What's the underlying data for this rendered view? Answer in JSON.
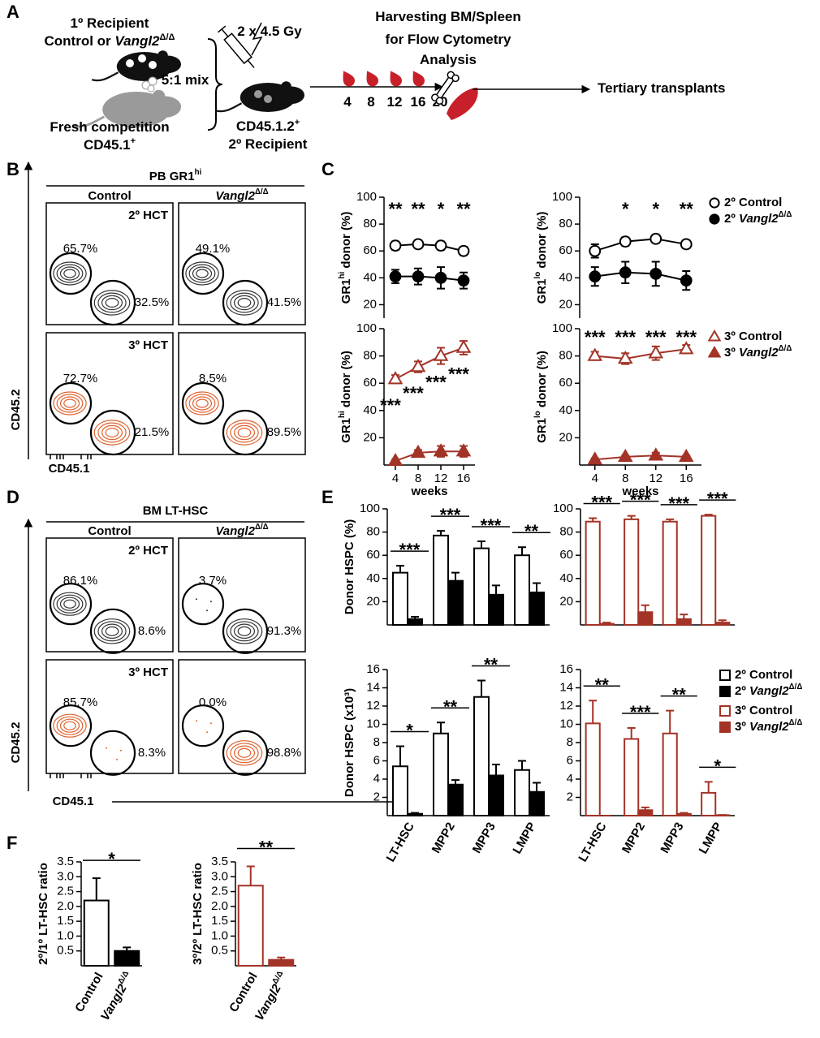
{
  "panel_labels": [
    "A",
    "B",
    "C",
    "D",
    "E",
    "F"
  ],
  "schematic": {
    "donor_title": "1º Recipient",
    "donor_genotype": "Control or Vangl2Δ/Δ",
    "mix": "5:1 mix",
    "competitor": [
      "Fresh competition",
      "CD45.1+"
    ],
    "irradiation": "2 x 4.5 Gy",
    "recipient": [
      "CD45.1.2+",
      "2º Recipient"
    ],
    "weeks": [
      4,
      8,
      12,
      16,
      20
    ],
    "harvest": [
      "Harvesting BM/Spleen",
      "for Flow Cytometry",
      "Analysis"
    ],
    "next": "Tertiary transplants"
  },
  "flow": [
    {
      "title": "PB GR1hi",
      "columns": [
        "Control",
        "Vangl2Δ/Δ"
      ],
      "rows": [
        "2º HCT",
        "3º HCT"
      ],
      "gates": [
        [
          [
            "65.7%",
            "32.5%"
          ],
          [
            "49.1%",
            "41.5%"
          ]
        ],
        [
          [
            "72.7%",
            "21.5%"
          ],
          [
            "8.5%",
            "89.5%"
          ]
        ]
      ],
      "x_label": "CD45.1",
      "y_label": "CD45.2"
    },
    {
      "title": "BM LT-HSC",
      "columns": [
        "Control",
        "Vangl2Δ/Δ"
      ],
      "rows": [
        "2º HCT",
        "3º HCT"
      ],
      "gates": [
        [
          [
            "86.1%",
            "8.6%"
          ],
          [
            "3.7%",
            "91.3%"
          ]
        ],
        [
          [
            "85.7%",
            "8.3%"
          ],
          [
            "0.0%",
            "98.8%"
          ]
        ]
      ],
      "x_label": "CD45.1",
      "y_label": "CD45.2"
    }
  ],
  "chart_data": [
    {
      "type": "line",
      "y_label": "GR1hi donor (%)",
      "x": [
        4,
        8,
        12,
        16
      ],
      "xlim": [
        2,
        18
      ],
      "ylim": [
        10,
        100
      ],
      "yticks": [
        20,
        40,
        60,
        80,
        100
      ],
      "series": [
        {
          "color": "#000000",
          "marker": "circle",
          "filled": false,
          "values": [
            64,
            65,
            64,
            60
          ],
          "errors": [
            3,
            3,
            3,
            3
          ]
        },
        {
          "color": "#000000",
          "marker": "circle",
          "filled": true,
          "values": [
            41,
            41,
            40,
            38
          ],
          "errors": [
            5,
            6,
            8,
            6
          ]
        }
      ],
      "annotations": [
        "**",
        "**",
        "*",
        "**"
      ]
    },
    {
      "type": "line",
      "y_label": "GR1lo donor (%)",
      "x": [
        4,
        8,
        12,
        16
      ],
      "xlim": [
        2,
        18
      ],
      "ylim": [
        10,
        100
      ],
      "yticks": [
        20,
        40,
        60,
        80,
        100
      ],
      "legend": "right",
      "series": [
        {
          "name": "2º Control",
          "color": "#000000",
          "marker": "circle",
          "filled": false,
          "values": [
            60,
            67,
            69,
            65
          ],
          "errors": [
            5,
            3,
            3,
            3
          ]
        },
        {
          "name": "2º Vangl2Δ/Δ",
          "color": "#000000",
          "marker": "circle",
          "filled": true,
          "values": [
            41,
            44,
            43,
            38
          ],
          "errors": [
            7,
            8,
            9,
            7
          ]
        }
      ],
      "annotations": [
        null,
        "*",
        "*",
        "**"
      ]
    },
    {
      "type": "line",
      "y_label": "GR1hi donor (%)",
      "x_label": "weeks",
      "x": [
        4,
        8,
        12,
        16
      ],
      "xlim": [
        2,
        18
      ],
      "xticks": [
        4,
        8,
        12,
        16
      ],
      "ylim": [
        0,
        100
      ],
      "yticks": [
        20,
        40,
        60,
        80,
        100
      ],
      "series": [
        {
          "color": "#a33327",
          "marker": "triangle",
          "filled": false,
          "values": [
            63,
            72,
            80,
            86
          ],
          "errors": [
            3,
            4,
            6,
            5
          ]
        },
        {
          "color": "#a33327",
          "marker": "triangle",
          "filled": true,
          "values": [
            3,
            9,
            10,
            10
          ],
          "errors": [
            1,
            2,
            4,
            4
          ]
        }
      ],
      "annotations": [
        "***",
        "***",
        "***",
        "***"
      ]
    },
    {
      "type": "line",
      "y_label": "GR1lo donor (%)",
      "x_label": "weeks",
      "x": [
        4,
        8,
        12,
        16
      ],
      "xlim": [
        2,
        18
      ],
      "xticks": [
        4,
        8,
        12,
        16
      ],
      "ylim": [
        0,
        100
      ],
      "yticks": [
        20,
        40,
        60,
        80,
        100
      ],
      "legend": "right",
      "series": [
        {
          "name": "3º Control",
          "color": "#a33327",
          "marker": "triangle",
          "filled": false,
          "values": [
            80,
            78,
            82,
            85
          ],
          "errors": [
            3,
            4,
            5,
            3
          ]
        },
        {
          "name": "3º Vangl2Δ/Δ",
          "color": "#a33327",
          "marker": "triangle",
          "filled": true,
          "values": [
            4,
            6,
            7,
            6
          ],
          "errors": [
            1,
            1,
            2,
            1
          ]
        }
      ],
      "annotations": [
        "***",
        "***",
        "***",
        "***"
      ]
    },
    {
      "type": "bar",
      "y_label": "Donor HSPC (%)",
      "categories": [
        null,
        null,
        null,
        null
      ],
      "ylim": [
        0,
        100
      ],
      "yticks": [
        20,
        40,
        60,
        80,
        100
      ],
      "series": [
        {
          "color": "#000000",
          "filled": false,
          "values": [
            45,
            77,
            66,
            60
          ],
          "errors": [
            6,
            4,
            6,
            7
          ]
        },
        {
          "color": "#000000",
          "filled": true,
          "values": [
            5,
            38,
            26,
            28
          ],
          "errors": [
            2,
            7,
            8,
            8
          ]
        }
      ],
      "annotations": [
        "***",
        "***",
        "***",
        "**"
      ]
    },
    {
      "type": "bar",
      "categories": [
        null,
        null,
        null,
        null
      ],
      "ylim": [
        0,
        100
      ],
      "yticks": [
        20,
        40,
        60,
        80,
        100
      ],
      "series": [
        {
          "color": "#a33327",
          "filled": false,
          "values": [
            89,
            91,
            89,
            94
          ],
          "errors": [
            3,
            3,
            2,
            1
          ]
        },
        {
          "color": "#a33327",
          "filled": true,
          "values": [
            1,
            11,
            5,
            2
          ],
          "errors": [
            1,
            6,
            4,
            2
          ]
        }
      ],
      "annotations": [
        "***",
        "***",
        "***",
        "***"
      ]
    },
    {
      "type": "bar",
      "y_label": "Donor HSPC (x10³)",
      "categories": [
        "LT-HSC",
        "MPP2",
        "MPP3",
        "LMPP"
      ],
      "ylim": [
        0,
        16
      ],
      "yticks": [
        2,
        4,
        6,
        8,
        10,
        12,
        14,
        16
      ],
      "legend": "right",
      "series": [
        {
          "name": "2º Control",
          "color": "#000000",
          "filled": false,
          "values": [
            5.4,
            9,
            13,
            5
          ],
          "errors": [
            2.2,
            1.2,
            1.8,
            1
          ]
        },
        {
          "name": "2º Vangl2Δ/Δ",
          "color": "#000000",
          "filled": true,
          "values": [
            0.2,
            3.4,
            4.4,
            2.6
          ],
          "errors": [
            0.1,
            0.5,
            1.2,
            1
          ]
        }
      ],
      "annotations": [
        "*",
        "**",
        "**",
        null
      ]
    },
    {
      "type": "bar",
      "categories": [
        "LT-HSC",
        "MPP2",
        "MPP3",
        "LMPP"
      ],
      "ylim": [
        0,
        16
      ],
      "yticks": [
        2,
        4,
        6,
        8,
        10,
        12,
        14,
        16
      ],
      "legend": "right",
      "series": [
        {
          "name": "3º Control",
          "color": "#a33327",
          "filled": false,
          "values": [
            10.1,
            8.4,
            9,
            2.5
          ],
          "errors": [
            2.5,
            1.2,
            2.5,
            1.2
          ]
        },
        {
          "name": "3º Vangl2Δ/Δ",
          "color": "#a33327",
          "filled": true,
          "values": [
            0,
            0.6,
            0.2,
            0.05
          ],
          "errors": [
            0,
            0.3,
            0.1,
            0.03
          ]
        }
      ],
      "annotations": [
        "**",
        "***",
        "**",
        "*"
      ]
    },
    {
      "type": "bar",
      "y_label": "2º/1º LT-HSC ratio",
      "categories": [
        "Control",
        "Vangl2Δ/Δ"
      ],
      "ylim": [
        0,
        3.5
      ],
      "yticks": [
        0.5,
        {
          "value": 1,
          "label": "1.0"
        },
        1.5,
        {
          "value": 2,
          "label": "2.0"
        },
        2.5,
        {
          "value": 3,
          "label": "3.0"
        },
        3.5
      ],
      "color": "#000000",
      "filled": [
        false,
        true
      ],
      "values": [
        2.2,
        0.5
      ],
      "errors": [
        0.75,
        0.12
      ],
      "annotation": "*"
    },
    {
      "type": "bar",
      "y_label": "3º/2º LT-HSC ratio",
      "categories": [
        "Control",
        "Vangl2Δ/Δ"
      ],
      "ylim": [
        0,
        3.5
      ],
      "yticks": [
        0.5,
        {
          "value": 1,
          "label": "1.0"
        },
        1.5,
        {
          "value": 2,
          "label": "2.0"
        },
        2.5,
        {
          "value": 3,
          "label": "3.0"
        },
        3.5
      ],
      "color": "#a33327",
      "filled": [
        false,
        true
      ],
      "values": [
        2.7,
        0.2
      ],
      "errors": [
        0.65,
        0.08
      ],
      "annotation": "**"
    }
  ]
}
